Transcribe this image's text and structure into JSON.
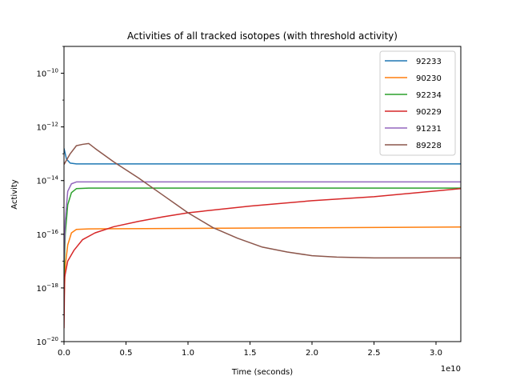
{
  "chart_data": {
    "type": "line",
    "title": "Activities of all tracked isotopes (with threshold activity)",
    "xlabel": "Time (seconds)",
    "ylabel": "Activity",
    "x_offset_label": "1e10",
    "xlim": [
      0,
      3.2
    ],
    "ylim_log10": [
      -20,
      -9
    ],
    "yscale": "log",
    "x_ticks": [
      {
        "value": 0,
        "label": "0.0"
      },
      {
        "value": 0.5,
        "label": "0.5"
      },
      {
        "value": 1.0,
        "label": "1.0"
      },
      {
        "value": 1.5,
        "label": "1.5"
      },
      {
        "value": 2.0,
        "label": "2.0"
      },
      {
        "value": 2.5,
        "label": "2.5"
      },
      {
        "value": 3.0,
        "label": "3.0"
      }
    ],
    "y_ticks": [
      {
        "exp": -10,
        "base": "10",
        "sup": "−10"
      },
      {
        "exp": -12,
        "base": "10",
        "sup": "−12"
      },
      {
        "exp": -14,
        "base": "10",
        "sup": "−14"
      },
      {
        "exp": -16,
        "base": "10",
        "sup": "−16"
      },
      {
        "exp": -18,
        "base": "10",
        "sup": "−18"
      },
      {
        "exp": -20,
        "base": "10",
        "sup": "−20"
      }
    ],
    "legend_position": "top-right",
    "series": [
      {
        "name": "92233",
        "color": "#1f77b4",
        "points": [
          [
            0,
            -12.8
          ],
          [
            0.02,
            -13.2
          ],
          [
            0.05,
            -13.35
          ],
          [
            0.1,
            -13.38
          ],
          [
            3.2,
            -13.38
          ]
        ]
      },
      {
        "name": "90230",
        "color": "#ff7f0e",
        "points": [
          [
            0,
            -18.5
          ],
          [
            0.01,
            -17.2
          ],
          [
            0.03,
            -16.4
          ],
          [
            0.06,
            -15.95
          ],
          [
            0.1,
            -15.82
          ],
          [
            0.2,
            -15.8
          ],
          [
            1.0,
            -15.78
          ],
          [
            2.0,
            -15.76
          ],
          [
            3.2,
            -15.73
          ]
        ]
      },
      {
        "name": "92234",
        "color": "#2ca02c",
        "points": [
          [
            0,
            -17.5
          ],
          [
            0.01,
            -16.0
          ],
          [
            0.03,
            -14.9
          ],
          [
            0.06,
            -14.45
          ],
          [
            0.1,
            -14.3
          ],
          [
            0.2,
            -14.28
          ],
          [
            3.2,
            -14.28
          ]
        ]
      },
      {
        "name": "90229",
        "color": "#d62728",
        "points": [
          [
            0,
            -19.5
          ],
          [
            0.005,
            -17.6
          ],
          [
            0.03,
            -17.0
          ],
          [
            0.08,
            -16.6
          ],
          [
            0.15,
            -16.2
          ],
          [
            0.25,
            -15.95
          ],
          [
            0.4,
            -15.72
          ],
          [
            0.6,
            -15.52
          ],
          [
            0.8,
            -15.35
          ],
          [
            1.0,
            -15.2
          ],
          [
            1.5,
            -14.95
          ],
          [
            2.0,
            -14.75
          ],
          [
            2.5,
            -14.6
          ],
          [
            3.2,
            -14.3
          ]
        ]
      },
      {
        "name": "91231",
        "color": "#9467bd",
        "points": [
          [
            0,
            -17.0
          ],
          [
            0.01,
            -15.5
          ],
          [
            0.03,
            -14.4
          ],
          [
            0.06,
            -14.12
          ],
          [
            0.1,
            -14.05
          ],
          [
            3.2,
            -14.05
          ]
        ]
      },
      {
        "name": "89228",
        "color": "#8c564b",
        "points": [
          [
            0,
            -13.4
          ],
          [
            0.05,
            -13.0
          ],
          [
            0.1,
            -12.7
          ],
          [
            0.15,
            -12.65
          ],
          [
            0.2,
            -12.62
          ],
          [
            0.25,
            -12.8
          ],
          [
            0.4,
            -13.3
          ],
          [
            0.6,
            -13.9
          ],
          [
            0.8,
            -14.55
          ],
          [
            1.0,
            -15.2
          ],
          [
            1.2,
            -15.75
          ],
          [
            1.4,
            -16.15
          ],
          [
            1.6,
            -16.48
          ],
          [
            1.8,
            -16.66
          ],
          [
            2.0,
            -16.8
          ],
          [
            2.2,
            -16.85
          ],
          [
            2.5,
            -16.88
          ],
          [
            3.0,
            -16.88
          ],
          [
            3.2,
            -16.88
          ]
        ]
      }
    ]
  }
}
